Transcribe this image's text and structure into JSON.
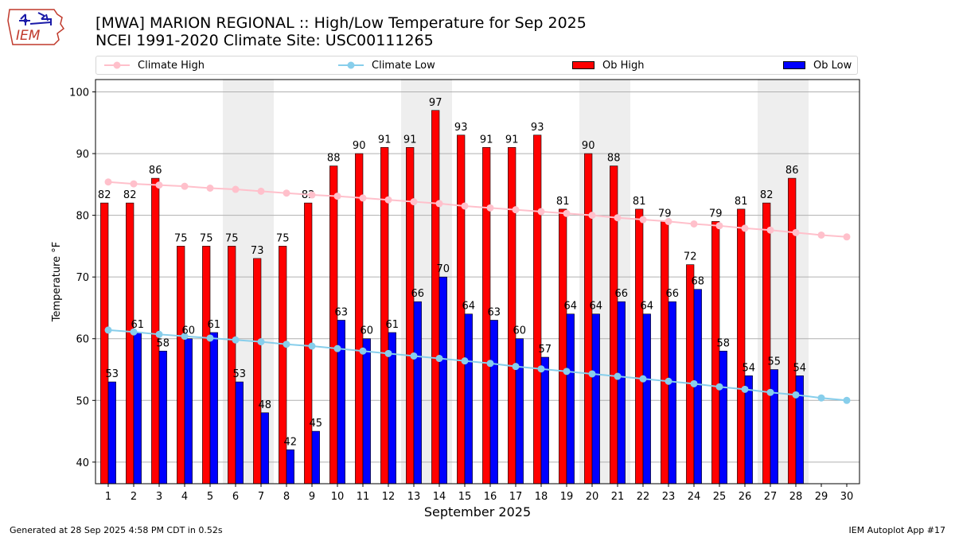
{
  "header": {
    "title_line1": "[MWA] MARION REGIONAL :: High/Low Temperature for Sep 2025",
    "title_line2": "NCEI 1991-2020 Climate Site: USC00111265"
  },
  "logo": {
    "text": "IEM"
  },
  "footer": {
    "generated": "Generated at 28 Sep 2025 4:58 PM CDT in 0.52s",
    "app": "IEM Autoplot App #17"
  },
  "colors": {
    "ob_high": "#ff0000",
    "ob_low": "#0000ff",
    "climate_high": "#ffc0cb",
    "climate_low": "#87ceeb",
    "weekend_shade": "#eeeeee",
    "grid": "#b0b0b0"
  },
  "chart_data": {
    "type": "bar",
    "xlabel": "September 2025",
    "ylabel": "Temperature °F",
    "ylim": [
      36.5,
      102
    ],
    "yticks": [
      40,
      50,
      60,
      70,
      80,
      90,
      100
    ],
    "grid": "horizontal",
    "legend_position": "top",
    "categories": [
      1,
      2,
      3,
      4,
      5,
      6,
      7,
      8,
      9,
      10,
      11,
      12,
      13,
      14,
      15,
      16,
      17,
      18,
      19,
      20,
      21,
      22,
      23,
      24,
      25,
      26,
      27,
      28,
      29,
      30
    ],
    "shaded_days": [
      6,
      7,
      13,
      14,
      20,
      21,
      27,
      28
    ],
    "series": [
      {
        "name": "Climate High",
        "kind": "line",
        "values": [
          85.4,
          85.1,
          84.9,
          84.7,
          84.4,
          84.2,
          83.9,
          83.6,
          83.3,
          83.1,
          82.8,
          82.5,
          82.2,
          81.9,
          81.5,
          81.2,
          80.9,
          80.6,
          80.3,
          80.0,
          79.6,
          79.3,
          79.0,
          78.6,
          78.3,
          77.9,
          77.6,
          77.2,
          76.8,
          76.5
        ]
      },
      {
        "name": "Climate Low",
        "kind": "line",
        "values": [
          61.4,
          61.1,
          60.7,
          60.4,
          60.1,
          59.8,
          59.5,
          59.1,
          58.8,
          58.4,
          58.0,
          57.6,
          57.2,
          56.8,
          56.4,
          56.0,
          55.5,
          55.1,
          54.7,
          54.3,
          53.9,
          53.5,
          53.1,
          52.7,
          52.2,
          51.8,
          51.3,
          50.9,
          50.4,
          50.0
        ]
      },
      {
        "name": "Ob High",
        "kind": "bar",
        "values": [
          82,
          82,
          86,
          75,
          75,
          75,
          73,
          75,
          82,
          88,
          90,
          91,
          91,
          97,
          93,
          91,
          91,
          93,
          81,
          90,
          88,
          81,
          79,
          72,
          79,
          81,
          82,
          86,
          null,
          null
        ]
      },
      {
        "name": "Ob Low",
        "kind": "bar",
        "values": [
          53,
          61,
          58,
          60,
          61,
          53,
          48,
          42,
          45,
          63,
          60,
          61,
          66,
          70,
          64,
          63,
          60,
          57,
          64,
          64,
          66,
          64,
          66,
          68,
          58,
          54,
          55,
          54,
          null,
          null
        ]
      }
    ]
  }
}
